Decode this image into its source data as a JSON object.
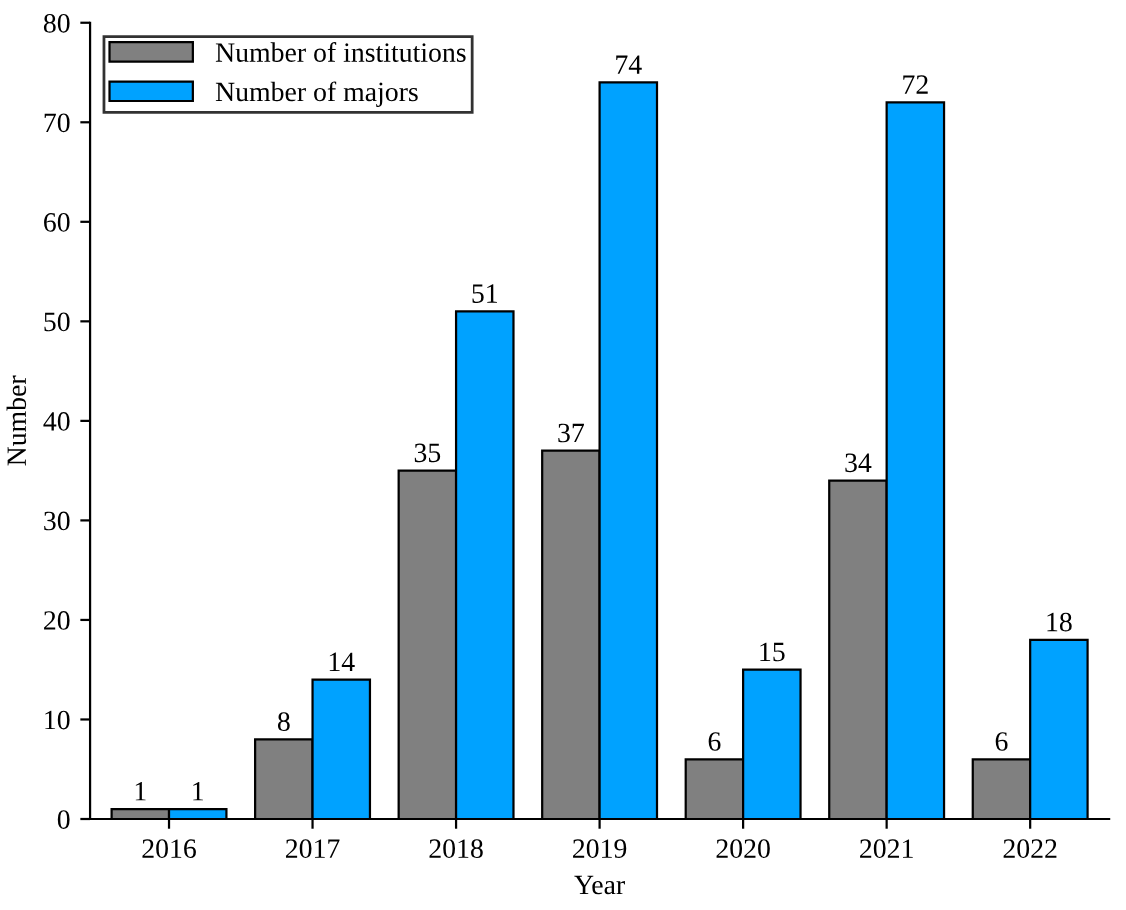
{
  "chart_data": {
    "type": "bar",
    "xlabel": "Year",
    "ylabel": "Number",
    "categories": [
      "2016",
      "2017",
      "2018",
      "2019",
      "2020",
      "2021",
      "2022"
    ],
    "series": [
      {
        "name": "Number of institutions",
        "color": "#808080",
        "values": [
          1,
          8,
          35,
          37,
          6,
          34,
          6
        ]
      },
      {
        "name": "Number of majors",
        "color": "#00a2ff",
        "values": [
          1,
          14,
          51,
          74,
          15,
          72,
          18
        ]
      }
    ],
    "ylim": [
      0,
      80
    ],
    "yticks": [
      0,
      10,
      20,
      30,
      40,
      50,
      60,
      70,
      80
    ],
    "data_labels": true,
    "legend": "top left",
    "grid": false
  }
}
